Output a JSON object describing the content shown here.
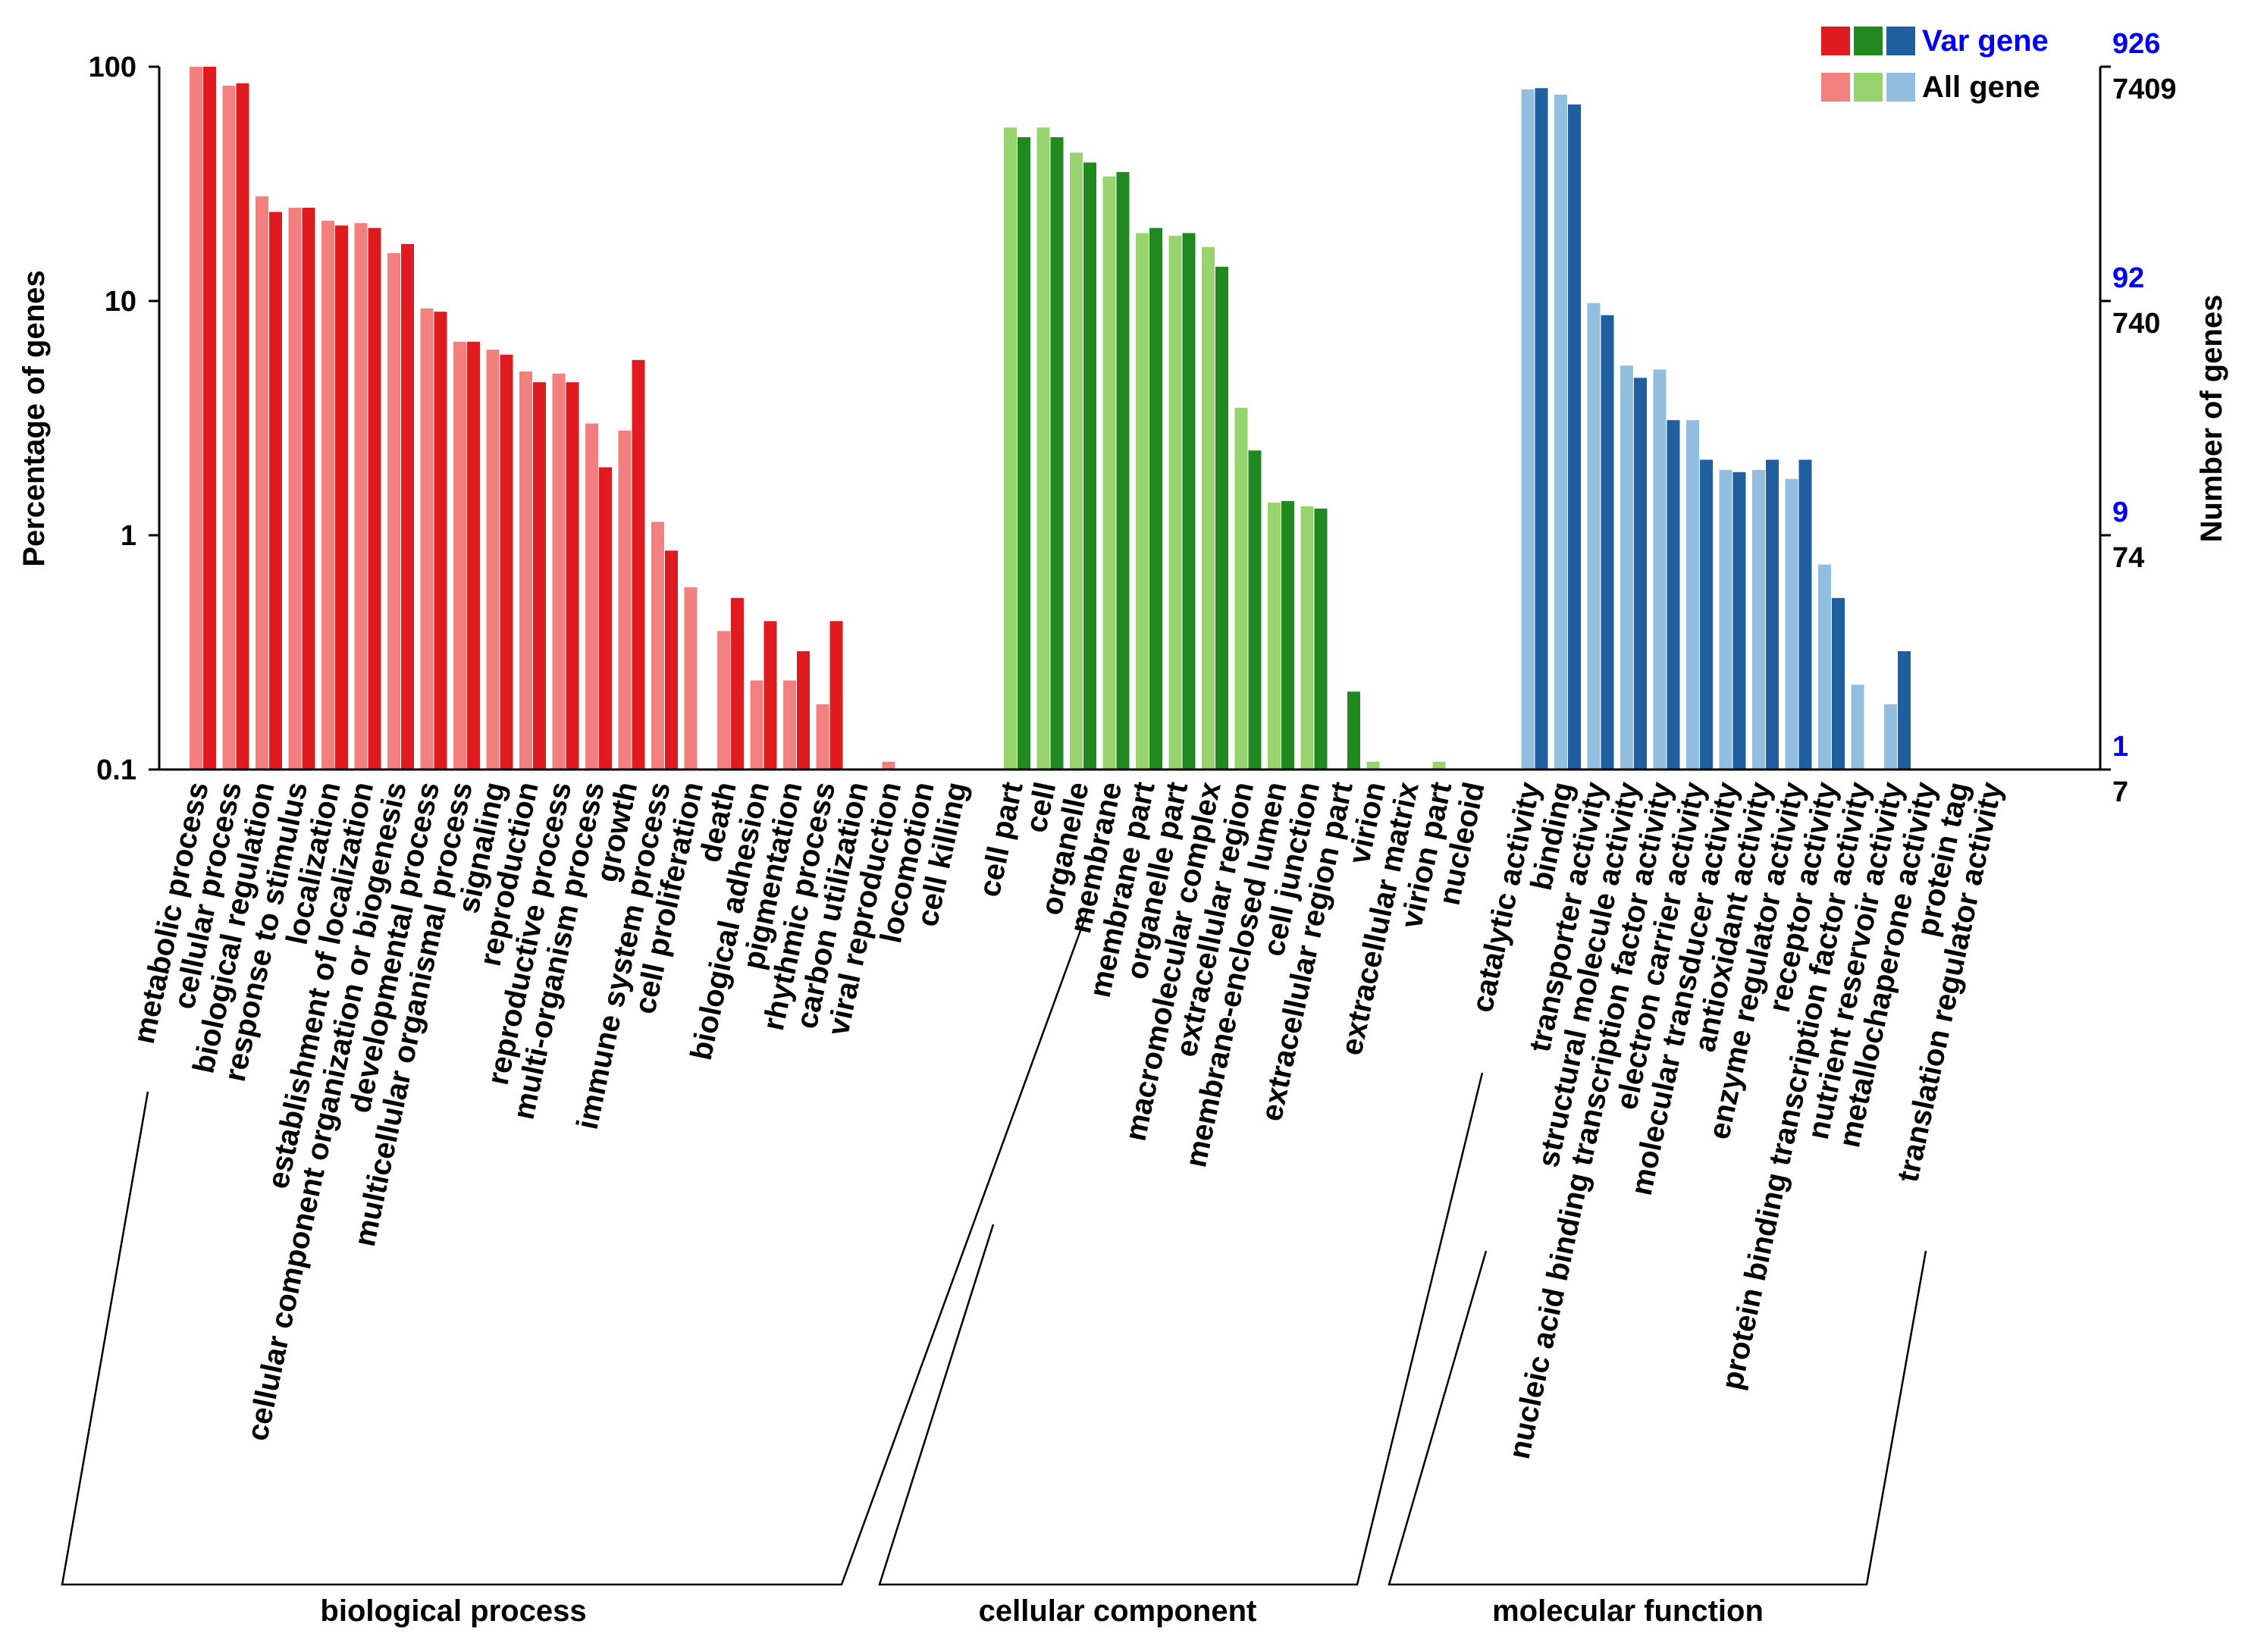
{
  "chart_data": {
    "type": "bar",
    "scale": "log",
    "ylabel": "Percentage of genes",
    "y2label": "Number of genes",
    "ylim": [
      0.1,
      100
    ],
    "y_ticks": [
      "100",
      "10",
      "1",
      "0.1"
    ],
    "y2_ticks_var": [
      "926",
      "92",
      "9",
      "1"
    ],
    "y2_ticks_all": [
      "7409",
      "740",
      "74",
      "7"
    ],
    "legend": {
      "position": "top-right",
      "var_label": "Var gene",
      "all_label": "All gene"
    },
    "series": [
      {
        "key": "all",
        "name": "All gene"
      },
      {
        "key": "var",
        "name": "Var gene"
      }
    ],
    "groups": [
      {
        "name": "biological process",
        "color_var": "#e01b1f",
        "color_all": "#f47f7f",
        "categories": [
          {
            "label": "metabolic process",
            "all": 100,
            "var": 100
          },
          {
            "label": "cellular process",
            "all": 83,
            "var": 85
          },
          {
            "label": "biological regulation",
            "all": 28,
            "var": 24
          },
          {
            "label": "response to stimulus",
            "all": 25,
            "var": 25
          },
          {
            "label": "localization",
            "all": 22,
            "var": 21
          },
          {
            "label": "establishment of localization",
            "all": 21.5,
            "var": 20.5
          },
          {
            "label": "cellular component organization or biogenesis",
            "all": 16,
            "var": 17.5
          },
          {
            "label": "developmental process",
            "all": 9.3,
            "var": 9.0
          },
          {
            "label": "multicellular organismal process",
            "all": 6.7,
            "var": 6.7
          },
          {
            "label": "signaling",
            "all": 6.2,
            "var": 5.9
          },
          {
            "label": "reproduction",
            "all": 5.0,
            "var": 4.5
          },
          {
            "label": "reproductive process",
            "all": 4.9,
            "var": 4.5
          },
          {
            "label": "multi-organism process",
            "all": 3.0,
            "var": 1.95
          },
          {
            "label": "growth",
            "all": 2.8,
            "var": 5.6
          },
          {
            "label": "immune system process",
            "all": 1.14,
            "var": 0.86
          },
          {
            "label": "cell proliferation",
            "all": 0.6,
            "var": null
          },
          {
            "label": "death",
            "all": 0.39,
            "var": 0.54
          },
          {
            "label": "biological adhesion",
            "all": 0.24,
            "var": 0.43
          },
          {
            "label": "pigmentation",
            "all": 0.24,
            "var": 0.32
          },
          {
            "label": "rhythmic process",
            "all": 0.19,
            "var": 0.43
          },
          {
            "label": "carbon utilization",
            "all": null,
            "var": null
          },
          {
            "label": "viral reproduction",
            "all": 0.108,
            "var": null
          },
          {
            "label": "locomotion",
            "all": null,
            "var": null
          },
          {
            "label": "cell killing",
            "all": null,
            "var": null
          }
        ]
      },
      {
        "name": "cellular component",
        "color_var": "#208a20",
        "color_all": "#98d46e",
        "categories": [
          {
            "label": "cell part",
            "all": 55,
            "var": 50
          },
          {
            "label": "cell",
            "all": 55,
            "var": 50
          },
          {
            "label": "organelle",
            "all": 43,
            "var": 39
          },
          {
            "label": "membrane",
            "all": 34,
            "var": 35.5
          },
          {
            "label": "membrane part",
            "all": 19.5,
            "var": 20.5
          },
          {
            "label": "organelle part",
            "all": 19,
            "var": 19.5
          },
          {
            "label": "macromolecular complex",
            "all": 17,
            "var": 14
          },
          {
            "label": "extracellular region",
            "all": 3.5,
            "var": 2.3
          },
          {
            "label": "membrane-enclosed lumen",
            "all": 1.38,
            "var": 1.4
          },
          {
            "label": "cell junction",
            "all": 1.33,
            "var": 1.3
          },
          {
            "label": "extracellular region part",
            "all": null,
            "var": 0.215
          },
          {
            "label": "virion",
            "all": 0.108,
            "var": null
          },
          {
            "label": "extracellular matrix",
            "all": null,
            "var": null
          },
          {
            "label": "virion part",
            "all": 0.108,
            "var": null
          },
          {
            "label": "nucleoid",
            "all": null,
            "var": null
          }
        ]
      },
      {
        "name": "molecular function",
        "color_var": "#1f5fa0",
        "color_all": "#92bfe0",
        "categories": [
          {
            "label": "catalytic activity",
            "all": 80,
            "var": 81
          },
          {
            "label": "binding",
            "all": 76,
            "var": 69
          },
          {
            "label": "transporter activity",
            "all": 9.8,
            "var": 8.7
          },
          {
            "label": "structural molecule activity",
            "all": 5.3,
            "var": 4.7
          },
          {
            "label": "nucleic acid binding transcription factor activity",
            "all": 5.1,
            "var": 3.1
          },
          {
            "label": "electron carrier activity",
            "all": 3.1,
            "var": 2.1
          },
          {
            "label": "molecular transducer activity",
            "all": 1.9,
            "var": 1.86
          },
          {
            "label": "antioxidant activity",
            "all": 1.9,
            "var": 2.1
          },
          {
            "label": "enzyme regulator activity",
            "all": 1.74,
            "var": 2.1
          },
          {
            "label": "receptor activity",
            "all": 0.75,
            "var": 0.54
          },
          {
            "label": "protein binding transcription factor activity",
            "all": 0.23,
            "var": null
          },
          {
            "label": "nutrient reservoir activity",
            "all": 0.19,
            "var": 0.32
          },
          {
            "label": "metallochaperone activity",
            "all": null,
            "var": null
          },
          {
            "label": "protein tag",
            "all": null,
            "var": null
          },
          {
            "label": "translation regulator activity",
            "all": null,
            "var": null
          }
        ]
      }
    ]
  }
}
